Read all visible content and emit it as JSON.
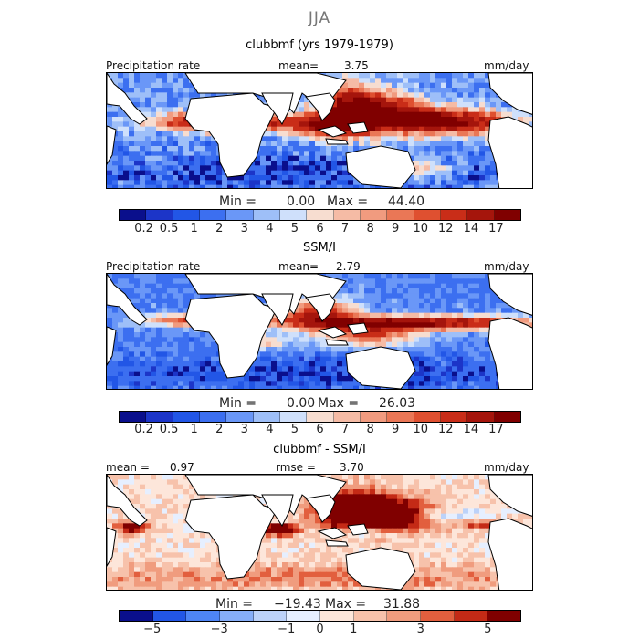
{
  "season": "JJA",
  "colors": {
    "seq": [
      "#0a0f8c",
      "#1c35c8",
      "#2256e6",
      "#3c6ff0",
      "#6a97f7",
      "#9ebff8",
      "#cfe0fb",
      "#f7ddd0",
      "#f5bba5",
      "#f19b7f",
      "#ea7756",
      "#df5030",
      "#c92d18",
      "#a5150c",
      "#800000"
    ],
    "diff": [
      "#0a0f8c",
      "#2256e6",
      "#4e85f5",
      "#86aef8",
      "#bcd2f9",
      "#e6efff",
      "#fde6da",
      "#f7c2ab",
      "#f09c7e",
      "#e25f3e",
      "#c42a16",
      "#800000"
    ],
    "land": "#ffffff",
    "coast": "#000000"
  },
  "panels": [
    {
      "title": "clubbmf (yrs 1979-1979)",
      "left_label": "Precipitation rate",
      "mean_label": "mean=",
      "mean_value": "3.75",
      "units": "mm/day",
      "min_label": "Min =",
      "min_value": "0.00",
      "max_label": "Max =",
      "max_value": "44.40",
      "ticks": [
        "0.2",
        "0.5",
        "1",
        "2",
        "3",
        "4",
        "5",
        "6",
        "7",
        "8",
        "9",
        "10",
        "12",
        "14",
        "17"
      ]
    },
    {
      "title": "SSM/I",
      "left_label": "Precipitation rate",
      "mean_label": "mean=",
      "mean_value": "2.79",
      "units": "mm/day",
      "min_label": "Min =",
      "min_value": "0.00",
      "max_label": "Max =",
      "max_value": "26.03",
      "ticks": [
        "0.2",
        "0.5",
        "1",
        "2",
        "3",
        "4",
        "5",
        "6",
        "7",
        "8",
        "9",
        "10",
        "12",
        "14",
        "17"
      ]
    },
    {
      "title": "clubbmf - SSM/I",
      "left_label": "mean =",
      "mean_label": "",
      "mean_value": "0.97",
      "rmse_label": "rmse =",
      "rmse_value": "3.70",
      "units": "mm/day",
      "min_label": "Min =",
      "min_value": "−19.43",
      "max_label": "Max =",
      "max_value": "31.88",
      "ticks": [
        "−5",
        "−3",
        "−1",
        "0",
        "1",
        "3",
        "5"
      ]
    }
  ],
  "chart_data": [
    {
      "type": "heatmap",
      "title": "clubbmf (yrs 1979-1979)",
      "variable": "Precipitation rate",
      "units": "mm/day",
      "mean": 3.75,
      "min": 0.0,
      "max": 44.4,
      "colorbar_levels": [
        0.2,
        0.5,
        1,
        2,
        3,
        4,
        5,
        6,
        7,
        8,
        9,
        10,
        12,
        14,
        17
      ],
      "region": "tropics, global longitudes"
    },
    {
      "type": "heatmap",
      "title": "SSM/I",
      "variable": "Precipitation rate",
      "units": "mm/day",
      "mean": 2.79,
      "min": 0.0,
      "max": 26.03,
      "colorbar_levels": [
        0.2,
        0.5,
        1,
        2,
        3,
        4,
        5,
        6,
        7,
        8,
        9,
        10,
        12,
        14,
        17
      ],
      "region": "tropics, global longitudes"
    },
    {
      "type": "heatmap",
      "title": "clubbmf - SSM/I",
      "units": "mm/day",
      "mean": 0.97,
      "rmse": 3.7,
      "min": -19.43,
      "max": 31.88,
      "colorbar_levels": [
        -5,
        -3,
        -1,
        0,
        1,
        3,
        5
      ],
      "region": "tropics, global longitudes"
    }
  ]
}
